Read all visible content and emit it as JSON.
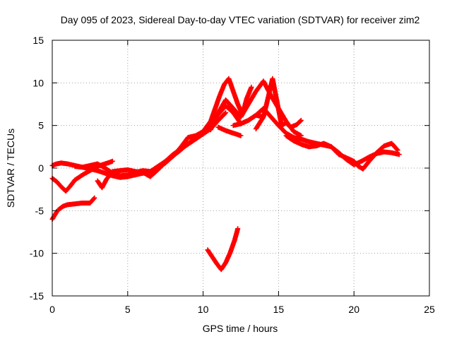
{
  "chart_data": {
    "type": "scatter",
    "title": "Day 095 of 2023, Sidereal Day-to-day VTEC variation (SDTVAR) for receiver zim2",
    "xlabel": "GPS time / hours",
    "ylabel": "SDTVAR / TECUs",
    "xlim": [
      0,
      25
    ],
    "ylim": [
      -15,
      15
    ],
    "xticks": [
      0,
      5,
      10,
      15,
      20,
      25
    ],
    "yticks": [
      -15,
      -10,
      -5,
      0,
      5,
      10,
      15
    ],
    "xtick_labels": [
      "0",
      "5",
      "10",
      "15",
      "20",
      "25"
    ],
    "ytick_labels": [
      "-15",
      "-10",
      "-5",
      "0",
      "5",
      "10",
      "15"
    ],
    "grid": true,
    "marker": "+",
    "color": "#ff0000",
    "series": [
      {
        "name": "track-1",
        "x": [
          0.0,
          0.3,
          0.6,
          1.0,
          1.5,
          2.0,
          2.5,
          3.0,
          3.5,
          4.0,
          4.5,
          5.0,
          5.5,
          6.0,
          6.5,
          7.0
        ],
        "y": [
          0.3,
          0.5,
          0.6,
          0.5,
          0.3,
          0.1,
          -0.1,
          -0.3,
          -0.6,
          -0.9,
          -1.1,
          -1.0,
          -0.8,
          -0.6,
          -0.4,
          -0.2
        ]
      },
      {
        "name": "track-2",
        "x": [
          0.0,
          0.3,
          0.6,
          0.9,
          1.2,
          1.5,
          2.0,
          2.5,
          3.0,
          3.5,
          4.0
        ],
        "y": [
          -1.2,
          -1.6,
          -2.2,
          -2.7,
          -2.1,
          -1.4,
          -0.8,
          -0.3,
          0.2,
          0.5,
          0.8
        ]
      },
      {
        "name": "track-3",
        "x": [
          0.0,
          0.2,
          0.4,
          0.7,
          1.0,
          1.5,
          2.0,
          2.5,
          2.8
        ],
        "y": [
          -6.0,
          -5.4,
          -4.9,
          -4.5,
          -4.3,
          -4.2,
          -4.1,
          -4.1,
          -3.5
        ]
      },
      {
        "name": "track-4",
        "x": [
          1.5,
          2.0,
          2.5,
          3.0,
          3.5,
          4.0,
          4.5,
          5.0,
          5.5,
          6.0,
          6.5,
          7.0,
          7.5,
          8.0,
          8.5,
          9.0,
          9.5,
          10.0,
          10.5,
          11.0,
          11.5
        ],
        "y": [
          0.2,
          0.1,
          0.3,
          0.5,
          0.0,
          -0.6,
          -0.9,
          -0.8,
          -0.5,
          -0.3,
          -0.4,
          0.2,
          0.8,
          1.6,
          2.2,
          2.8,
          3.4,
          4.0,
          4.6,
          5.6,
          6.5
        ]
      },
      {
        "name": "track-5",
        "x": [
          3.0,
          3.3,
          3.6,
          4.0,
          4.5,
          5.0,
          5.5,
          6.0,
          6.5,
          7.0,
          7.5,
          8.0,
          8.5,
          9.0,
          9.5,
          10.0,
          10.5,
          11.0,
          11.5,
          12.0,
          12.5,
          13.0,
          13.5,
          14.0
        ],
        "y": [
          -1.5,
          -2.3,
          -1.3,
          -0.4,
          -0.3,
          -0.2,
          -0.4,
          -0.5,
          -1.0,
          -0.2,
          0.7,
          1.4,
          2.1,
          2.9,
          3.5,
          4.2,
          5.2,
          6.3,
          7.3,
          6.5,
          5.2,
          5.6,
          6.2,
          6.0
        ]
      },
      {
        "name": "track-6",
        "x": [
          6.0,
          6.5,
          7.0,
          7.5,
          8.0,
          8.5,
          9.0,
          9.5,
          10.0,
          10.5,
          10.8,
          11.1,
          11.4,
          11.7,
          12.0,
          12.3,
          12.6,
          12.9,
          13.2
        ],
        "y": [
          -0.6,
          -0.4,
          0.0,
          0.6,
          1.4,
          2.4,
          3.6,
          3.8,
          4.3,
          5.5,
          7.0,
          8.5,
          9.8,
          10.5,
          9.0,
          7.5,
          6.3,
          8.2,
          9.5
        ]
      },
      {
        "name": "track-7",
        "x": [
          10.5,
          11.0,
          11.5,
          12.0,
          12.5,
          13.0,
          13.5,
          14.0,
          14.5,
          15.0,
          15.5,
          16.0,
          16.5
        ],
        "y": [
          4.5,
          6.5,
          8.0,
          7.0,
          6.0,
          7.5,
          9.0,
          10.2,
          8.5,
          7.0,
          5.5,
          4.3,
          3.8
        ]
      },
      {
        "name": "track-8",
        "x": [
          11.0,
          11.5,
          12.0,
          12.5
        ],
        "y": [
          4.8,
          4.4,
          4.1,
          3.8
        ]
      },
      {
        "name": "track-9",
        "x": [
          12.0,
          12.5,
          13.0,
          13.5,
          14.0,
          14.5,
          15.0,
          15.5,
          16.0,
          16.5,
          17.0,
          17.5,
          18.0,
          18.5,
          19.0,
          19.5,
          20.0,
          20.5,
          21.0,
          21.5,
          22.0,
          22.5,
          23.0
        ],
        "y": [
          5.0,
          5.2,
          5.6,
          6.2,
          7.0,
          6.0,
          5.0,
          4.1,
          3.6,
          3.4,
          3.1,
          2.9,
          2.7,
          2.5,
          1.8,
          1.0,
          0.4,
          0.8,
          1.3,
          1.7,
          1.9,
          1.8,
          1.6
        ]
      },
      {
        "name": "track-10",
        "x": [
          13.5,
          14.0,
          14.3,
          14.6,
          14.9,
          15.2,
          15.5,
          15.8,
          16.2,
          16.5
        ],
        "y": [
          4.6,
          6.0,
          8.2,
          10.5,
          7.8,
          5.0,
          5.3,
          4.8,
          5.1,
          5.6
        ]
      },
      {
        "name": "track-11",
        "x": [
          15.5,
          16.0,
          16.5,
          17.0,
          17.5,
          18.0,
          18.5,
          19.0,
          19.5,
          20.0,
          20.3,
          20.6,
          21.0,
          21.5,
          22.0,
          22.5,
          22.9
        ],
        "y": [
          3.8,
          3.2,
          2.8,
          2.5,
          2.6,
          2.9,
          2.5,
          1.6,
          1.2,
          0.8,
          0.2,
          -0.1,
          0.8,
          1.8,
          2.6,
          2.9,
          2.1
        ]
      },
      {
        "name": "track-12",
        "x": [
          10.3,
          10.6,
          10.9,
          11.2,
          11.5,
          11.8,
          12.1,
          12.3
        ],
        "y": [
          -9.6,
          -10.4,
          -11.2,
          -11.9,
          -11.1,
          -9.9,
          -8.4,
          -7.1
        ]
      }
    ]
  }
}
